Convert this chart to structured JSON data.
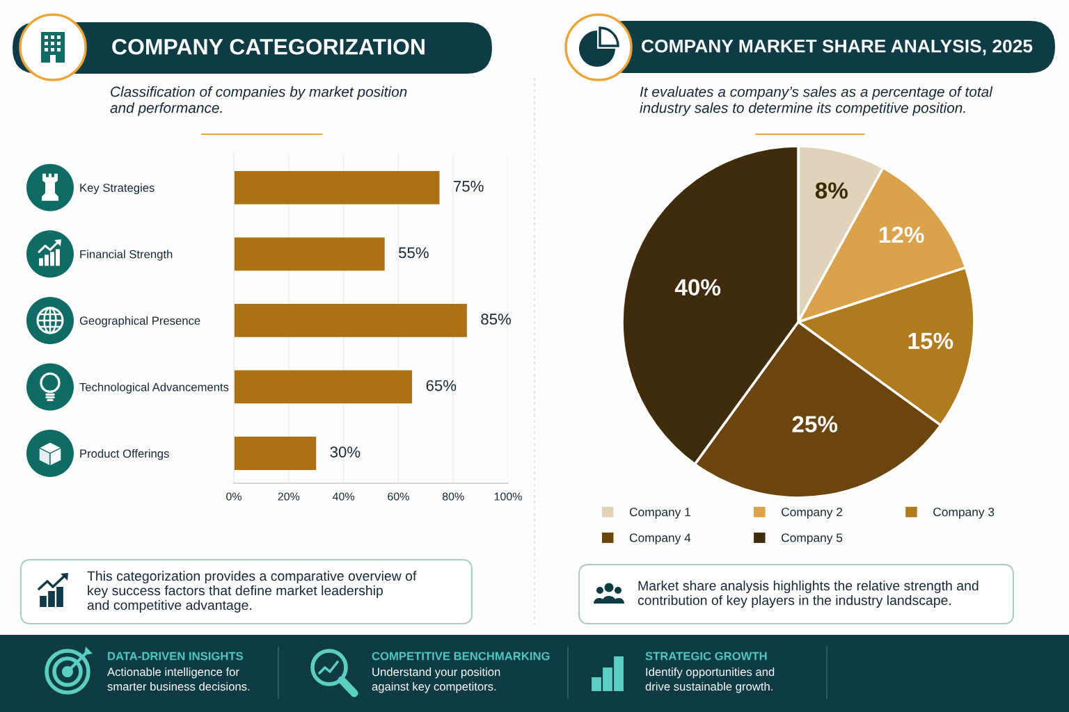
{
  "chart_data": [
    {
      "type": "bar",
      "orientation": "horizontal",
      "title": "COMPANY CATEGORIZATION",
      "subtitle": "Classification of companies by market position\nand performance.",
      "categories": [
        "Key Strategies",
        "Financial Strength",
        "Geographical Presence",
        "Technological Advancements",
        "Product Offerings"
      ],
      "values": [
        75,
        55,
        85,
        65,
        30
      ],
      "color": "#ad7115",
      "value_labels": [
        "75%",
        "55%",
        "85%",
        "65%",
        "30%"
      ],
      "xlim": [
        0,
        100
      ],
      "xticks": [
        {
          "value": 0,
          "label": "0%"
        },
        {
          "value": 20,
          "label": "20%"
        },
        {
          "value": 40,
          "label": "40%"
        },
        {
          "value": 60,
          "label": "60%"
        },
        {
          "value": 80,
          "label": "80%"
        },
        {
          "value": 100,
          "label": "100%"
        }
      ],
      "grid": "x",
      "annotations": [
        "This categorization provides a comparative overview of\nkey success factors that define market leadership\nand competitive advantage."
      ]
    },
    {
      "type": "pie",
      "title": "COMPANY MARKET SHARE ANALYSIS, 2025",
      "subtitle": "It evaluates a company’s sales as a percentage of total\nindustry sales to determine its competitive position.",
      "categories": [
        "Company 1",
        "Company 2",
        "Company 3",
        "Company 4",
        "Company 5"
      ],
      "values": [
        8,
        12,
        15,
        25,
        40
      ],
      "colors": [
        "#e0d3b9",
        "#daa24a",
        "#b07a1e",
        "#6b450d",
        "#402c0a"
      ],
      "value_labels": [
        "8%",
        "12%",
        "15%",
        "25%",
        "40%"
      ],
      "legend": "bottom",
      "annotations": [
        "Market share analysis highlights the relative strength and\ncontribution of key players in the industry landscape."
      ]
    },
    {
      "type": "other",
      "annotations": [
        "DATA-DRIVEN INSIGHTS",
        "Actionable intelligence for\nsmarter business decisions.",
        "COMPETITIVE BENCHMARKING",
        "Understand your position\nagainst key competitors.",
        "STRATEGIC GROWTH",
        "Identify opportunities and\ndrive sustainable growth."
      ]
    }
  ]
}
